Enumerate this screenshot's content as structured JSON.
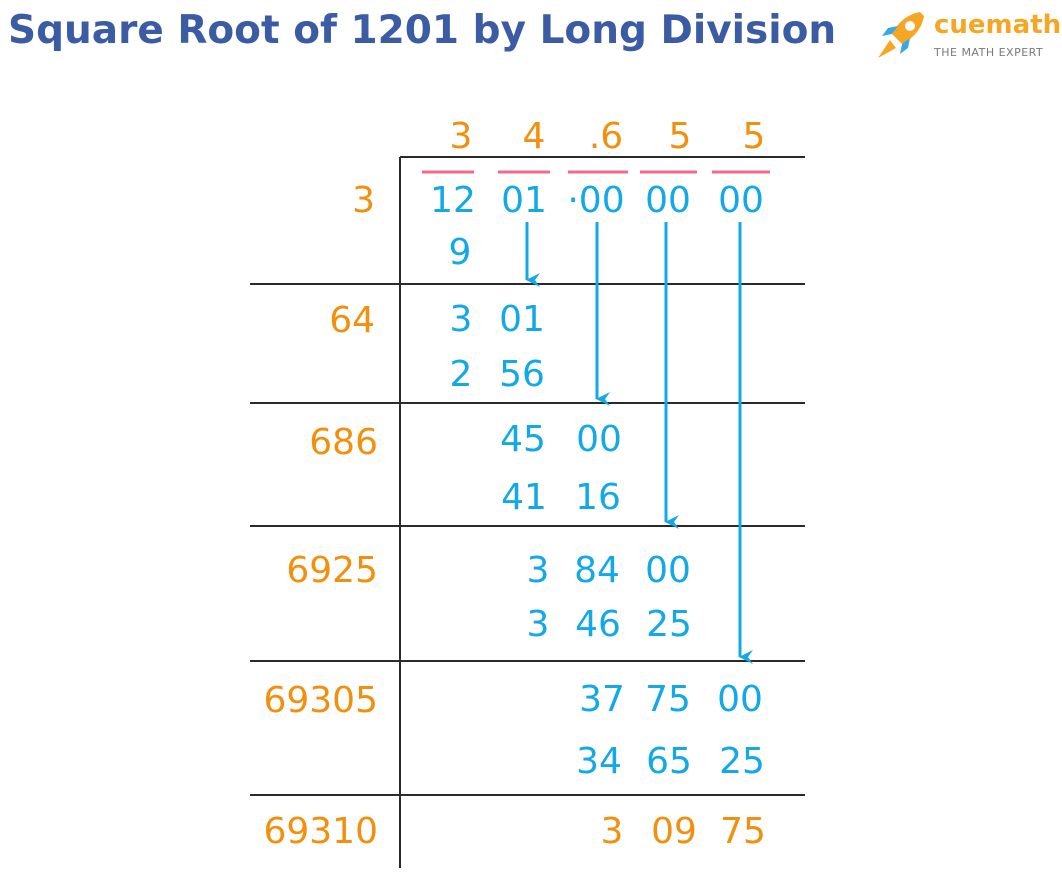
{
  "title": "Square Root of 1201 by Long Division",
  "logo": {
    "name": "cuemath",
    "tagline": "THE MATH EXPERT",
    "icon": "rocket-icon"
  },
  "colors": {
    "title": "#3b5ba5",
    "orange": "#f2900d",
    "blue": "#13a8e8",
    "pink": "#f06a8a",
    "line": "#2a2a2a"
  },
  "quotient": [
    "3",
    "4",
    ".6",
    "5",
    "5"
  ],
  "dividend": [
    "12",
    "01",
    "·00",
    "00",
    "00"
  ],
  "divisors": [
    "3",
    "64",
    "686",
    "6925",
    "69305",
    "69310"
  ],
  "work": {
    "step1_sub": "9",
    "step2_rem": [
      "3",
      "01"
    ],
    "step2_sub": [
      "2",
      "56"
    ],
    "step3_rem": [
      "45",
      "00"
    ],
    "step3_sub": [
      "41",
      "16"
    ],
    "step4_rem": [
      "3",
      "84",
      "00"
    ],
    "step4_sub": [
      "3",
      "46",
      "25"
    ],
    "step5_rem": [
      "37",
      "75",
      "00"
    ],
    "step5_sub": [
      "34",
      "65",
      "25"
    ],
    "final_rem": [
      "3",
      "09",
      "75"
    ]
  }
}
